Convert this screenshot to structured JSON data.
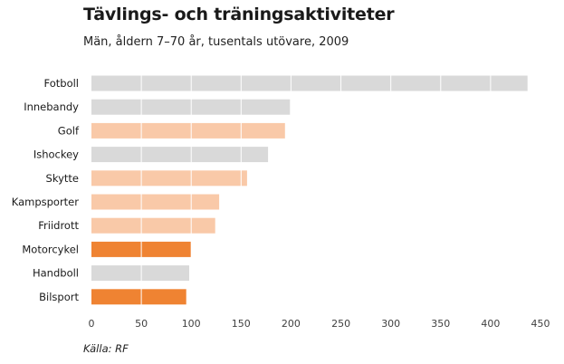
{
  "title": "Tävlings- och träningsaktiviteter",
  "subtitle": "Män, åldern 7–70 år, tusentals utövare, 2009",
  "source": "Källa: RF",
  "colors": {
    "gray": "#d9d9d9",
    "light_orange": "#f9c9a8",
    "orange": "#ef8332",
    "gridline": "#ffffff",
    "axis_text": "#404040"
  },
  "chart_data": {
    "type": "bar",
    "orientation": "horizontal",
    "title": "Tävlings- och träningsaktiviteter",
    "subtitle": "Män, åldern 7–70 år, tusentals utövare, 2009",
    "categories": [
      "Fotboll",
      "Innebandy",
      "Golf",
      "Ishockey",
      "Skytte",
      "Kampsporter",
      "Friidrott",
      "Motorcykel",
      "Handboll",
      "Bilsport"
    ],
    "values": [
      437,
      199,
      194,
      177,
      156,
      128,
      124,
      100,
      98,
      95
    ],
    "bar_colors": [
      "gray",
      "gray",
      "light_orange",
      "gray",
      "light_orange",
      "light_orange",
      "light_orange",
      "orange",
      "gray",
      "orange"
    ],
    "xlim": [
      0,
      450
    ],
    "xticks": [
      0,
      50,
      100,
      150,
      200,
      250,
      300,
      350,
      400,
      450
    ],
    "grid": "vertical",
    "xlabel": "",
    "ylabel": ""
  }
}
